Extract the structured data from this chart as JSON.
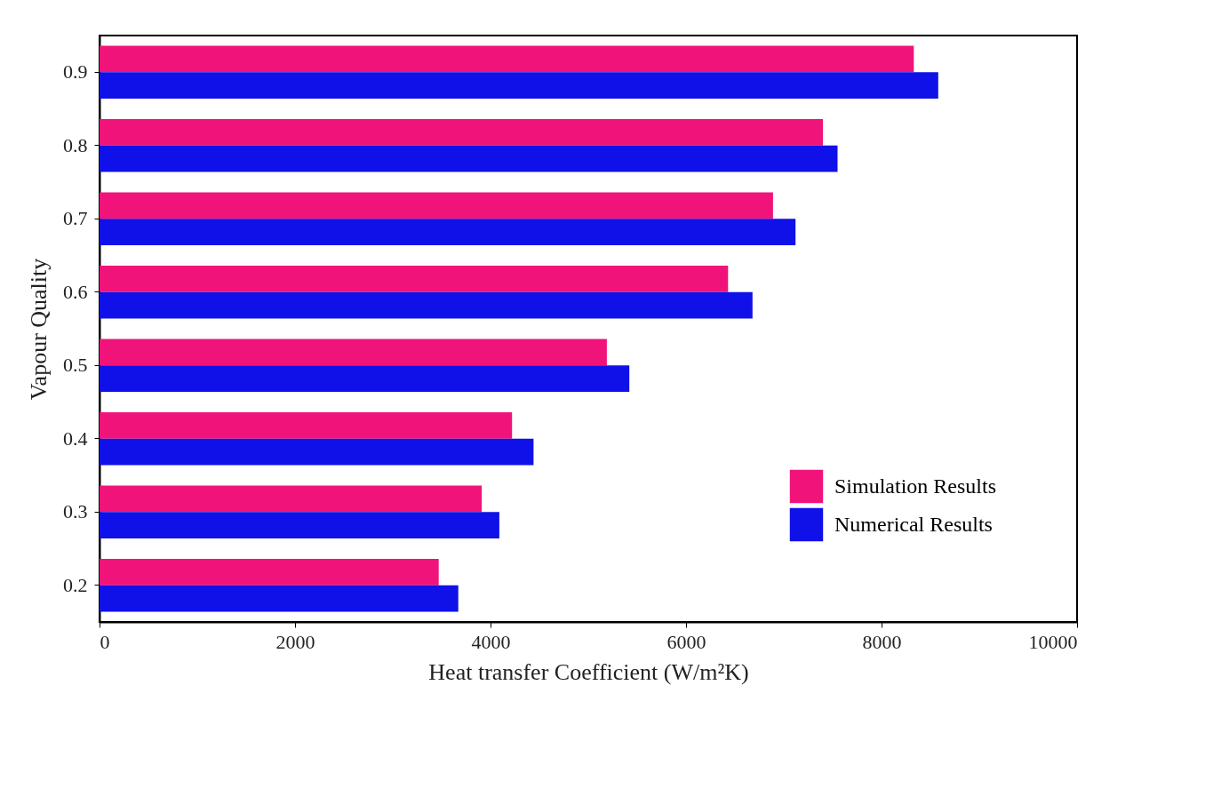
{
  "chart_data": {
    "type": "bar",
    "orientation": "horizontal",
    "xlabel": "Heat transfer Coefficient (W/m²K)",
    "ylabel": "Vapour Quality",
    "categories": [
      "0.9",
      "0.8",
      "0.7",
      "0.6",
      "0.5",
      "0.4",
      "0.3",
      "0.2"
    ],
    "series": [
      {
        "name": "Simulation Results",
        "color": "#f0147a",
        "values": [
          8330,
          7400,
          6890,
          6430,
          5190,
          4220,
          3910,
          3470
        ]
      },
      {
        "name": "Numerical Results",
        "color": "#1010e8",
        "values": [
          8580,
          7550,
          7120,
          6680,
          5420,
          4440,
          4090,
          3670
        ]
      }
    ],
    "xlim": [
      0,
      10000
    ],
    "xticks": [
      0,
      2000,
      4000,
      6000,
      8000,
      10000
    ],
    "legend": "bottom right",
    "grid": false
  }
}
